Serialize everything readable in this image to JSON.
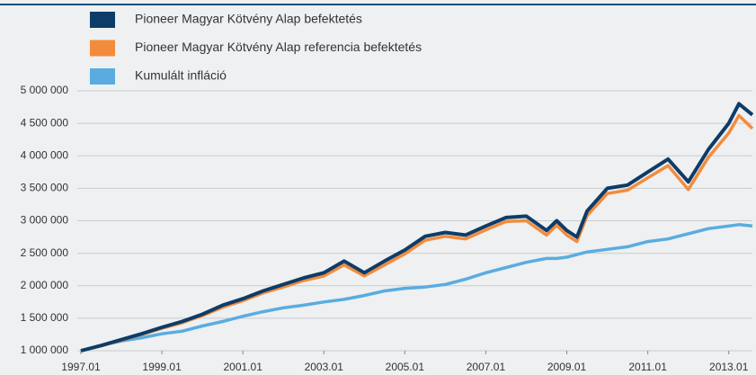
{
  "chart_data": {
    "type": "line",
    "x": [
      "1997.01",
      "1997.07",
      "1998.01",
      "1998.07",
      "1999.01",
      "1999.07",
      "2000.01",
      "2000.07",
      "2001.01",
      "2001.07",
      "2002.01",
      "2002.07",
      "2003.01",
      "2003.07",
      "2004.01",
      "2004.07",
      "2005.01",
      "2005.07",
      "2006.01",
      "2006.07",
      "2007.01",
      "2007.07",
      "2008.01",
      "2008.07",
      "2008.10",
      "2009.01",
      "2009.04",
      "2009.07",
      "2010.01",
      "2010.07",
      "2011.01",
      "2011.07",
      "2012.01",
      "2012.07",
      "2013.01",
      "2013.04",
      "2013.08"
    ],
    "series": [
      {
        "name": "Kumulált infláció",
        "color": "#5aace0",
        "legend_order": 2,
        "values": [
          1000000,
          1080000,
          1150000,
          1200000,
          1260000,
          1300000,
          1380000,
          1450000,
          1530000,
          1600000,
          1660000,
          1700000,
          1750000,
          1790000,
          1850000,
          1920000,
          1960000,
          1980000,
          2020000,
          2100000,
          2200000,
          2280000,
          2360000,
          2420000,
          2420000,
          2440000,
          2480000,
          2520000,
          2560000,
          2600000,
          2680000,
          2720000,
          2800000,
          2880000,
          2920000,
          2940000,
          2920000
        ]
      },
      {
        "name": "Pioneer Magyar Kötvény Alap referencia befektetés",
        "color": "#f28c3c",
        "legend_order": 1,
        "values": [
          1000000,
          1075000,
          1160000,
          1250000,
          1345000,
          1430000,
          1540000,
          1670000,
          1770000,
          1890000,
          1980000,
          2080000,
          2150000,
          2320000,
          2150000,
          2320000,
          2490000,
          2700000,
          2760000,
          2720000,
          2860000,
          2990000,
          3000000,
          2780000,
          2930000,
          2780000,
          2680000,
          3080000,
          3420000,
          3470000,
          3660000,
          3850000,
          3480000,
          3980000,
          4350000,
          4620000,
          4420000
        ]
      },
      {
        "name": "Pioneer Magyar Kötvény Alap befektetés",
        "color": "#0e3c68",
        "legend_order": 0,
        "values": [
          1000000,
          1080000,
          1170000,
          1260000,
          1360000,
          1450000,
          1560000,
          1700000,
          1800000,
          1920000,
          2020000,
          2120000,
          2200000,
          2380000,
          2200000,
          2380000,
          2550000,
          2760000,
          2820000,
          2780000,
          2920000,
          3050000,
          3070000,
          2850000,
          3000000,
          2850000,
          2750000,
          3150000,
          3500000,
          3550000,
          3750000,
          3950000,
          3600000,
          4100000,
          4500000,
          4800000,
          4630000
        ]
      }
    ],
    "xlim": [
      "1997.01",
      "2013.08"
    ],
    "xticks": [
      "1997.01",
      "1999.01",
      "2001.01",
      "2003.01",
      "2005.01",
      "2007.01",
      "2009.01",
      "2011.01",
      "2013.01"
    ],
    "ylim": [
      1000000,
      5000000
    ],
    "yticks": [
      {
        "value": 1000000,
        "label": "1 000 000"
      },
      {
        "value": 1500000,
        "label": "1 500 000"
      },
      {
        "value": 2000000,
        "label": "2 000 000"
      },
      {
        "value": 2500000,
        "label": "2 500 000"
      },
      {
        "value": 3000000,
        "label": "3 000 000"
      },
      {
        "value": 3500000,
        "label": "3 500 000"
      },
      {
        "value": 4000000,
        "label": "4 000 000"
      },
      {
        "value": 4500000,
        "label": "4 500 000"
      },
      {
        "value": 5000000,
        "label": "5 000 000"
      }
    ],
    "grid": true
  }
}
